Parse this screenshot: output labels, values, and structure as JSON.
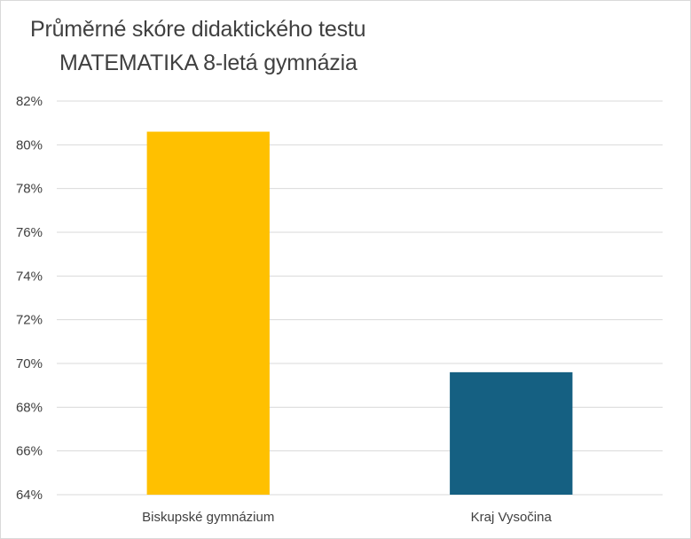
{
  "chart_data": {
    "type": "bar",
    "title_lines": [
      "Průměrné skóre didaktického testu",
      "MATEMATIKA 8-letá gymnázia"
    ],
    "categories": [
      "Biskupské gymnázium",
      "Kraj Vysočina"
    ],
    "values": [
      80.6,
      69.6
    ],
    "colors": [
      "#ffc000",
      "#156082"
    ],
    "ylim": [
      64,
      82
    ],
    "ytick_step": 2,
    "y_ticks": [
      "64%",
      "66%",
      "68%",
      "70%",
      "72%",
      "74%",
      "76%",
      "78%",
      "80%",
      "82%"
    ],
    "grid": true,
    "legend": "none"
  }
}
